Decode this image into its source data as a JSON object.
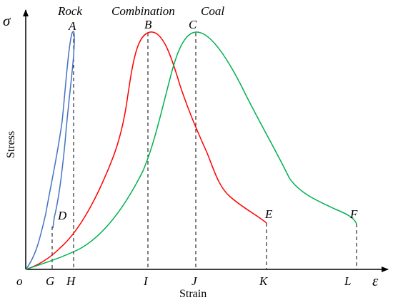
{
  "diagram": {
    "axes": {
      "y_symbol": "σ",
      "x_symbol": "ε",
      "origin_label": "o",
      "y_label": "Stress",
      "x_label": "Strain"
    },
    "curve_names": {
      "rock": "Rock",
      "combination": "Combination",
      "coal": "Coal"
    },
    "point_labels": {
      "A": "A",
      "B": "B",
      "C": "C",
      "D": "D",
      "E": "E",
      "F": "F",
      "G": "G",
      "H": "H",
      "I": "I",
      "J": "J",
      "K": "K",
      "L": "L"
    },
    "colors": {
      "axis": "#000000",
      "rock": "#4472c4",
      "combination": "#ff0000",
      "coal": "#00b050",
      "guide": "#000000"
    }
  }
}
